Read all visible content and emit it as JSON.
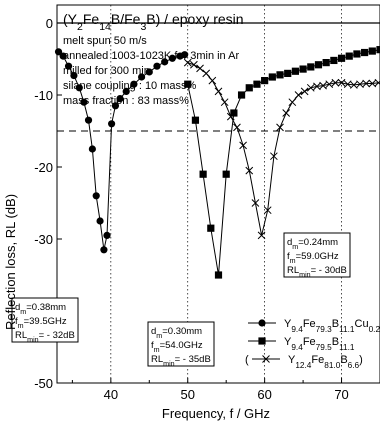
{
  "chart_data": {
    "type": "line",
    "title": "(Y2Fe14B/Fe3B) / epoxy resin",
    "info_lines": [
      "melt spun 50 m/s",
      "annealed 1003-1023K for 3min in Ar",
      "milled for 300 min",
      "silane coupling   : 10 mass%",
      "mass fraction      : 83 mass%"
    ],
    "xlabel": "Frequency, f / GHz",
    "ylabel": "Reflection loss, RL (dB)",
    "xlim": [
      33,
      75
    ],
    "ylim": [
      -50,
      0
    ],
    "x_ticks": [
      40,
      50,
      60,
      70
    ],
    "y_ticks": [
      0,
      -10,
      -20,
      -30,
      -40,
      -50
    ],
    "gridlines_x": [
      40,
      50,
      60,
      70
    ],
    "reference_line_y": -15,
    "series": [
      {
        "name": "Y9.4Fe79.3B11.1Cu0.2",
        "marker": "circle",
        "x": [
          33.2,
          33.8,
          34.5,
          35.2,
          35.9,
          36.5,
          37.1,
          37.6,
          38.1,
          38.6,
          39.1,
          39.5,
          40.1,
          40.6,
          41.2,
          42.0,
          43.0,
          44.0,
          45.0,
          46.0,
          47.0,
          48.0,
          49.0,
          49.6
        ],
        "y": [
          -4,
          -4.6,
          -6,
          -7.3,
          -9,
          -11,
          -13.5,
          -17.5,
          -24,
          -27.5,
          -31.5,
          -29.5,
          -14,
          -11.5,
          -10.5,
          -9.5,
          -8.5,
          -7.5,
          -6.8,
          -6,
          -5.4,
          -4.9,
          -4.6,
          -4.4
        ]
      },
      {
        "name": "Y9.4Fe79.5B11.1",
        "marker": "square",
        "x": [
          50.0,
          51.0,
          52.0,
          53.0,
          54.0,
          55.0,
          56.0,
          57.0,
          58.0,
          59.0,
          60.0,
          61.0,
          62.0,
          63.0,
          64.0,
          65.0,
          66.0,
          67.0,
          68.0,
          69.0,
          70.0,
          71.0,
          72.0,
          73.0,
          74.0,
          75.0
        ],
        "y": [
          -8.5,
          -13.5,
          -21,
          -28.5,
          -35,
          -21,
          -12.5,
          -10,
          -9,
          -8.5,
          -8,
          -7.5,
          -7.2,
          -7,
          -6.7,
          -6.4,
          -6.1,
          -5.8,
          -5.5,
          -5.2,
          -4.9,
          -4.6,
          -4.3,
          -4.1,
          -3.9,
          -3.7
        ]
      },
      {
        "name": "(Y12.4Fe81.0B6.6)",
        "marker": "cross",
        "x": [
          50.0,
          50.8,
          51.6,
          52.4,
          53.2,
          54.0,
          54.8,
          55.6,
          56.4,
          57.2,
          58.0,
          58.8,
          59.6,
          60.4,
          61.2,
          62.0,
          62.8,
          63.6,
          64.4,
          65.2,
          66.0,
          66.8,
          67.6,
          68.4,
          69.2,
          70.0,
          70.8,
          71.6,
          72.4,
          73.2,
          74.0,
          74.8
        ],
        "y": [
          -5.5,
          -5.8,
          -6.3,
          -7,
          -8,
          -9.5,
          -11,
          -13,
          -14.5,
          -17,
          -20.5,
          -25,
          -29.5,
          -26,
          -18.5,
          -14.5,
          -12.5,
          -11,
          -10,
          -9.5,
          -9,
          -8.8,
          -8.7,
          -8.5,
          -8.3,
          -8.3,
          -8.5,
          -8.6,
          -8.5,
          -8.4,
          -8.4,
          -8.3
        ]
      }
    ],
    "legend": {
      "placement": "bottom-right",
      "entries": [
        {
          "marker": "circle",
          "prefix": "",
          "parts": [
            [
              "Y",
              ""
            ],
            [
              "9.4",
              "sub"
            ],
            [
              "Fe",
              ""
            ],
            [
              "79.3",
              "sub"
            ],
            [
              "B",
              ""
            ],
            [
              "11.1",
              "sub"
            ],
            [
              "Cu",
              ""
            ],
            [
              "0.2",
              "sub"
            ]
          ],
          "suffix": ""
        },
        {
          "marker": "square",
          "prefix": "",
          "parts": [
            [
              "Y",
              ""
            ],
            [
              "9.4",
              "sub"
            ],
            [
              "Fe",
              ""
            ],
            [
              "79.5",
              "sub"
            ],
            [
              "B",
              ""
            ],
            [
              "11.1",
              "sub"
            ]
          ],
          "suffix": ""
        },
        {
          "marker": "cross",
          "prefix": "(",
          "parts": [
            [
              "Y",
              ""
            ],
            [
              "12.4",
              "sub"
            ],
            [
              "Fe",
              ""
            ],
            [
              "81.0",
              "sub"
            ],
            [
              "B",
              ""
            ],
            [
              "6.6",
              "sub"
            ]
          ],
          "suffix": ")"
        }
      ]
    },
    "annotations": [
      {
        "d": "0.38mm",
        "fm": "39.5GHz",
        "rl": " - 32dB"
      },
      {
        "d": "0.30mm",
        "fm": "54.0GHz",
        "rl": " - 35dB"
      },
      {
        "d": "0.24mm",
        "fm": "59.0GHz",
        "rl": " - 30dB"
      }
    ]
  }
}
